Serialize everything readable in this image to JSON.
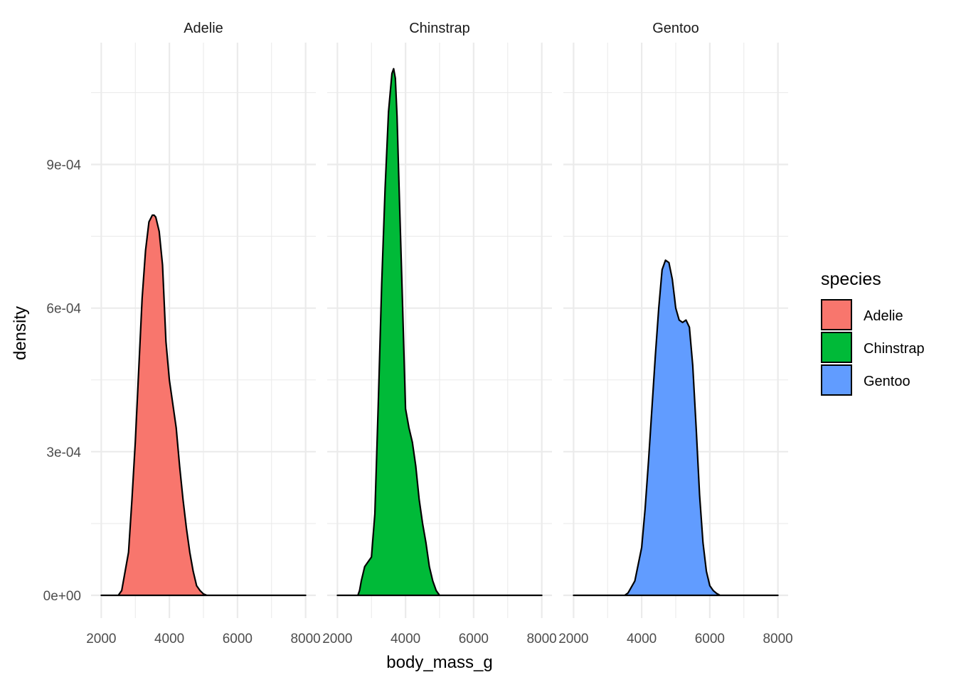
{
  "chart_data": {
    "type": "area",
    "facet_by": "species",
    "panels": [
      {
        "name": "Adelie",
        "color": "#F8766D"
      },
      {
        "name": "Chinstrap",
        "color": "#00BA38"
      },
      {
        "name": "Gentoo",
        "color": "#619CFF"
      }
    ],
    "xlabel": "body_mass_g",
    "ylabel": "density",
    "xlim": [
      2000,
      8000
    ],
    "ylim": [
      0,
      0.00112
    ],
    "x_ticks": [
      2000,
      4000,
      6000,
      8000
    ],
    "x_tick_labels": [
      "2000",
      "4000",
      "6000",
      "8000"
    ],
    "y_ticks": [
      0,
      0.0003,
      0.0006,
      0.0009
    ],
    "y_tick_labels": [
      "0e+00",
      "3e-04",
      "6e-04",
      "9e-04"
    ],
    "grid": true,
    "legend": {
      "title": "species",
      "position": "right",
      "entries": [
        {
          "label": "Adelie",
          "color": "#F8766D"
        },
        {
          "label": "Chinstrap",
          "color": "#00BA38"
        },
        {
          "label": "Gentoo",
          "color": "#619CFF"
        }
      ]
    },
    "series": [
      {
        "name": "Adelie",
        "x": [
          2000,
          2500,
          2600,
          2800,
          2900,
          3000,
          3100,
          3200,
          3300,
          3400,
          3500,
          3550,
          3600,
          3700,
          3800,
          3900,
          4000,
          4100,
          4200,
          4300,
          4400,
          4500,
          4600,
          4700,
          4800,
          4900,
          5000,
          5100,
          6000,
          8000
        ],
        "y": [
          0,
          0,
          1e-05,
          9e-05,
          0.0002,
          0.00032,
          0.00047,
          0.00062,
          0.00072,
          0.00078,
          0.000794,
          0.000794,
          0.00079,
          0.00076,
          0.00069,
          0.00053,
          0.00045,
          0.0004,
          0.00035,
          0.00027,
          0.0002,
          0.00014,
          9e-05,
          5e-05,
          2e-05,
          1e-05,
          3e-06,
          0,
          0,
          0
        ]
      },
      {
        "name": "Chinstrap",
        "x": [
          2000,
          2600,
          2650,
          2700,
          2800,
          2900,
          3000,
          3100,
          3200,
          3300,
          3400,
          3500,
          3600,
          3650,
          3700,
          3750,
          3800,
          3900,
          4000,
          4100,
          4200,
          4300,
          4400,
          4500,
          4600,
          4700,
          4800,
          4900,
          5000,
          5100,
          6000,
          8000
        ],
        "y": [
          0,
          0,
          1e-05,
          3e-05,
          6e-05,
          7e-05,
          8e-05,
          0.00017,
          0.0004,
          0.00065,
          0.00085,
          0.00101,
          0.00109,
          0.0011,
          0.00108,
          0.001,
          0.00088,
          0.00064,
          0.00039,
          0.00035,
          0.00032,
          0.00027,
          0.0002,
          0.00015,
          0.00011,
          6e-05,
          3e-05,
          1e-05,
          0,
          0,
          0,
          0
        ]
      },
      {
        "name": "Gentoo",
        "x": [
          2000,
          3500,
          3600,
          3800,
          4000,
          4100,
          4200,
          4300,
          4400,
          4500,
          4600,
          4700,
          4800,
          4900,
          5000,
          5100,
          5200,
          5300,
          5400,
          5500,
          5600,
          5700,
          5800,
          5900,
          6000,
          6100,
          6200,
          6300,
          6500,
          8000
        ],
        "y": [
          0,
          0,
          5e-06,
          3e-05,
          0.0001,
          0.00018,
          0.00028,
          0.00039,
          0.0005,
          0.0006,
          0.00068,
          0.0007,
          0.000695,
          0.00066,
          0.0006,
          0.000575,
          0.00057,
          0.000575,
          0.00056,
          0.00048,
          0.00035,
          0.00021,
          0.00011,
          5e-05,
          2e-05,
          1e-05,
          4e-06,
          0,
          0,
          0
        ]
      }
    ]
  }
}
